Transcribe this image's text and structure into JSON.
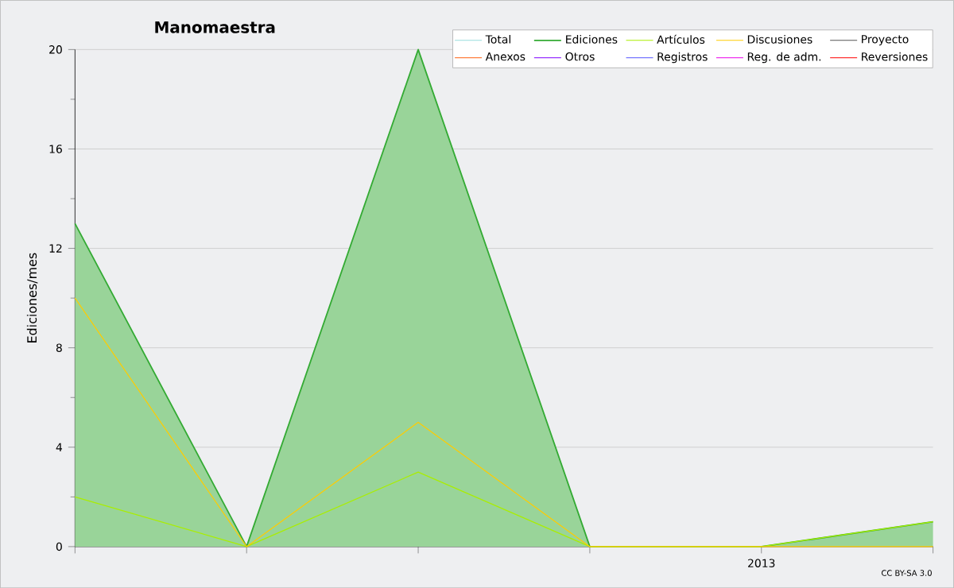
{
  "chart_data": {
    "type": "line",
    "title": "Manomaestra",
    "ylabel": "Ediciones/mes",
    "categories": [
      null,
      null,
      null,
      null,
      "2013",
      null
    ],
    "series": [
      {
        "name": "Total",
        "color": "#99dddd",
        "values": [
          null,
          null,
          null,
          null,
          null,
          null
        ]
      },
      {
        "name": "Ediciones",
        "color": "#33aa33",
        "type": "area",
        "values": [
          13,
          0,
          20,
          0,
          0,
          1
        ]
      },
      {
        "name": "Artículos",
        "color": "#aaee00",
        "values": [
          2,
          0,
          3,
          0,
          0,
          1
        ]
      },
      {
        "name": "Discusiones",
        "color": "#ffcc00",
        "values": [
          10,
          0,
          5,
          0,
          0,
          0
        ]
      },
      {
        "name": "Proyecto",
        "color": "#555555",
        "values": [
          null,
          null,
          null,
          null,
          null,
          null
        ]
      },
      {
        "name": "Anexos",
        "color": "#ff7f3f",
        "values": [
          null,
          null,
          null,
          null,
          null,
          null
        ]
      },
      {
        "name": "Otros",
        "color": "#9933ff",
        "values": [
          null,
          null,
          null,
          null,
          null,
          null
        ]
      },
      {
        "name": "Registros",
        "color": "#7777ff",
        "values": [
          null,
          null,
          null,
          null,
          null,
          null
        ]
      },
      {
        "name": "Reg. de adm.",
        "color": "#ee33ee",
        "values": [
          null,
          null,
          null,
          null,
          null,
          null
        ]
      },
      {
        "name": "Reversiones",
        "color": "#ff3333",
        "values": [
          null,
          null,
          null,
          null,
          null,
          null
        ]
      }
    ],
    "ylim": [
      0,
      20
    ],
    "yticks": [
      0,
      4,
      8,
      12,
      16,
      20
    ],
    "grid": "y",
    "legend": "top right",
    "annotations": [
      "CC BY-SA 3.0"
    ]
  }
}
